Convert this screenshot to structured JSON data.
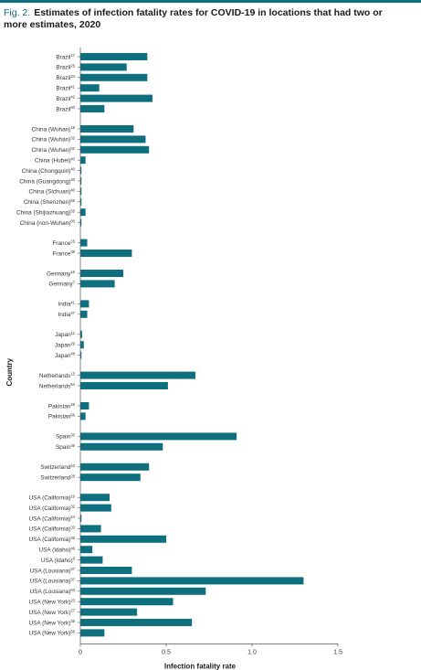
{
  "figure": {
    "label": "Fig. 2.",
    "title": "Estimates of infection fatality rates for COVID-19 in locations that had two or more estimates, 2020"
  },
  "colors": {
    "bar": "#0e6f7e",
    "rule": "#0e6f7e",
    "axis": "#555555"
  },
  "chart_data": {
    "type": "bar",
    "orientation": "horizontal",
    "xlabel": "Infection fatality rate",
    "ylabel": "Country",
    "xlim": [
      0,
      1.5
    ],
    "xticks": [
      "0",
      "0.5",
      "1.0",
      "1.5"
    ],
    "grid": false,
    "legend": "none",
    "groups": [
      {
        "name": "Brazil",
        "rows": [
          {
            "label": "Brazil",
            "ref": "17",
            "value": 0.39
          },
          {
            "label": "Brazil",
            "ref": "25",
            "value": 0.27
          },
          {
            "label": "Brazil",
            "ref": "34",
            "value": 0.39
          },
          {
            "label": "Brazil",
            "ref": "41",
            "value": 0.11
          },
          {
            "label": "Brazil",
            "ref": "42",
            "value": 0.42
          },
          {
            "label": "Brazil",
            "ref": "60",
            "value": 0.14
          }
        ]
      },
      {
        "name": "China",
        "rows": [
          {
            "label": "China (Wuhan)",
            "ref": "18",
            "value": 0.31
          },
          {
            "label": "China (Wuhan)",
            "ref": "32",
            "value": 0.38
          },
          {
            "label": "China (Wuhan)",
            "ref": "51",
            "value": 0.4
          },
          {
            "label": "China (Hubei)",
            "ref": "40",
            "value": 0.03
          },
          {
            "label": "China (Chongquin)",
            "ref": "40",
            "value": 0.005
          },
          {
            "label": "China (Guangdong)",
            "ref": "40",
            "value": 0.005
          },
          {
            "label": "China (Sichuan)",
            "ref": "40",
            "value": 0.005
          },
          {
            "label": "China (Shenzhen)",
            "ref": "55",
            "value": 0.005
          },
          {
            "label": "China (Shijiazhuang)",
            "ref": "55",
            "value": 0.03
          },
          {
            "label": "China (non-Wuhan)",
            "ref": "60",
            "value": 0.005
          }
        ]
      },
      {
        "name": "France",
        "rows": [
          {
            "label": "France",
            "ref": "15",
            "value": 0.04
          },
          {
            "label": "France",
            "ref": "39",
            "value": 0.3
          }
        ]
      },
      {
        "name": "Germany",
        "rows": [
          {
            "label": "Germany",
            "ref": "16",
            "value": 0.25
          },
          {
            "label": "Germany",
            "ref": "7",
            "value": 0.2
          }
        ]
      },
      {
        "name": "India",
        "rows": [
          {
            "label": "India",
            "ref": "41",
            "value": 0.05
          },
          {
            "label": "India",
            "ref": "47",
            "value": 0.04
          }
        ]
      },
      {
        "name": "Japan",
        "rows": [
          {
            "label": "Japan",
            "ref": "11",
            "value": 0.01
          },
          {
            "label": "Japan",
            "ref": "29",
            "value": 0.02
          },
          {
            "label": "Japan",
            "ref": "48",
            "value": 0.005
          }
        ]
      },
      {
        "name": "Netherlands",
        "rows": [
          {
            "label": "Netherlands",
            "ref": "15",
            "value": 0.67
          },
          {
            "label": "Netherlands",
            "ref": "54",
            "value": 0.51
          }
        ]
      },
      {
        "name": "Pakistan",
        "rows": [
          {
            "label": "Pakistan",
            "ref": "49",
            "value": 0.05
          },
          {
            "label": "Pakistan",
            "ref": "66",
            "value": 0.03
          }
        ]
      },
      {
        "name": "Spain",
        "rows": [
          {
            "label": "Spain",
            "ref": "30",
            "value": 0.91
          },
          {
            "label": "Spain",
            "ref": "46",
            "value": 0.48
          }
        ]
      },
      {
        "name": "Switzerland",
        "rows": [
          {
            "label": "Switzerland",
            "ref": "10",
            "value": 0.4
          },
          {
            "label": "Switzerland",
            "ref": "28",
            "value": 0.35
          }
        ]
      },
      {
        "name": "USA",
        "rows": [
          {
            "label": "USA (California)",
            "ref": "19",
            "value": 0.17
          },
          {
            "label": "USA (California)",
            "ref": "32",
            "value": 0.18
          },
          {
            "label": "USA (California)",
            "ref": "24",
            "value": 0.005
          },
          {
            "label": "USA (California)",
            "ref": "33",
            "value": 0.12
          },
          {
            "label": "USA (California)",
            "ref": "35",
            "value": 0.5
          },
          {
            "label": "USA (Idaho)",
            "ref": "46",
            "value": 0.07
          },
          {
            "label": "USA (Idaho)",
            "ref": "9",
            "value": 0.13
          },
          {
            "label": "USA (Lousiana)",
            "ref": "37",
            "value": 0.3
          },
          {
            "label": "USA (Lousiana)",
            "ref": "37",
            "value": 1.3
          },
          {
            "label": "USA (Lousiana)",
            "ref": "63",
            "value": 0.73
          },
          {
            "label": "USA (New York)",
            "ref": "23",
            "value": 0.54
          },
          {
            "label": "USA (New York)",
            "ref": "27",
            "value": 0.33
          },
          {
            "label": "USA (New York)",
            "ref": "35",
            "value": 0.65
          },
          {
            "label": "USA (New York)",
            "ref": "56",
            "value": 0.14
          }
        ]
      }
    ]
  }
}
